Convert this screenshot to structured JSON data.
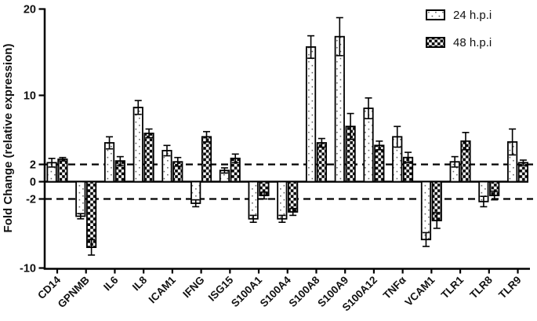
{
  "figure": {
    "title": "",
    "background": "#ffffff",
    "axis_color": "#000000"
  },
  "chart_data": {
    "type": "bar",
    "title": "",
    "xlabel": "",
    "ylabel": "Fold Change (relative expression)",
    "ylim": [
      -10,
      20
    ],
    "yticks": [
      20,
      10,
      2,
      0,
      -2,
      -10
    ],
    "reference_lines": [
      2,
      -2
    ],
    "reference_line_style": "dashed",
    "grid": false,
    "legend_position": "top-right",
    "categories": [
      "CD14",
      "GPNMB",
      "IL6",
      "IL8",
      "ICAM1",
      "IFNG",
      "ISG15",
      "S100A1",
      "S100A4",
      "S100A8",
      "S100A9",
      "S100A12",
      "TNFα",
      "VCAM1",
      "TLR1",
      "TLR8",
      "TLR9"
    ],
    "series": [
      {
        "name": "24 h.p.i",
        "pattern": "dots",
        "values": [
          2.2,
          -4.0,
          4.5,
          8.6,
          3.6,
          -2.5,
          1.3,
          -4.3,
          -4.3,
          15.6,
          16.8,
          8.5,
          5.2,
          -6.7,
          2.3,
          -2.3,
          4.6
        ],
        "errors": [
          0.5,
          0.3,
          0.7,
          0.8,
          0.6,
          0.4,
          0.3,
          0.4,
          0.4,
          1.3,
          2.2,
          1.2,
          1.2,
          0.8,
          0.6,
          0.6,
          1.5
        ]
      },
      {
        "name": "48 h.p.i",
        "pattern": "checkerboard",
        "values": [
          2.6,
          -7.6,
          2.4,
          5.6,
          2.3,
          5.2,
          2.7,
          -1.6,
          -3.5,
          4.5,
          6.4,
          4.2,
          2.8,
          -4.5,
          4.7,
          -1.6,
          2.2
        ],
        "errors": [
          0.2,
          0.9,
          0.5,
          0.5,
          0.5,
          0.6,
          0.5,
          0.4,
          0.4,
          0.5,
          1.5,
          0.5,
          0.6,
          0.9,
          1.0,
          0.5,
          0.3
        ]
      }
    ]
  },
  "legend": {
    "items": [
      {
        "label": "24 h.p.i",
        "swatch": "dotted-bar-swatch"
      },
      {
        "label": "48 h.p.i",
        "swatch": "checkered-bar-swatch"
      }
    ]
  },
  "colors": {
    "bar_fill": "#ffffff",
    "bar_stroke": "#000000",
    "dot_pattern": "#646464",
    "check_pattern": "#000000",
    "text": "#111111"
  }
}
